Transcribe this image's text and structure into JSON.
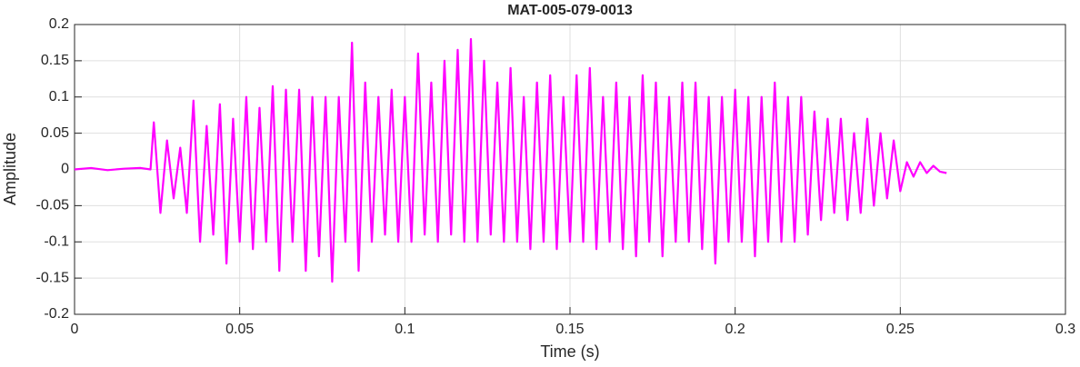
{
  "chart_data": {
    "type": "line",
    "title": "MAT-005-079-0013",
    "x_label": "Time (s)",
    "y_label": "Amplitude",
    "xlim": [
      0,
      0.3
    ],
    "xticks": [
      0,
      0.05,
      0.1,
      0.15,
      0.2,
      0.25,
      0.3
    ],
    "ylim": [
      -0.2,
      0.2
    ],
    "yticks": [
      0.2,
      0.15,
      0.1,
      0.05,
      0,
      -0.05,
      -0.1,
      -0.15,
      -0.2
    ],
    "grid": true,
    "x": [
      0,
      0.005,
      0.01,
      0.015,
      0.02,
      0.023,
      0.024,
      0.026,
      0.028,
      0.03,
      0.032,
      0.034,
      0.036,
      0.038,
      0.04,
      0.042,
      0.044,
      0.046,
      0.048,
      0.05,
      0.052,
      0.054,
      0.056,
      0.058,
      0.06,
      0.062,
      0.064,
      0.066,
      0.068,
      0.07,
      0.072,
      0.074,
      0.076,
      0.078,
      0.08,
      0.082,
      0.084,
      0.086,
      0.088,
      0.09,
      0.092,
      0.094,
      0.096,
      0.098,
      0.1,
      0.102,
      0.104,
      0.106,
      0.108,
      0.11,
      0.112,
      0.114,
      0.116,
      0.118,
      0.12,
      0.122,
      0.124,
      0.126,
      0.128,
      0.13,
      0.132,
      0.134,
      0.136,
      0.138,
      0.14,
      0.142,
      0.144,
      0.146,
      0.148,
      0.15,
      0.152,
      0.154,
      0.156,
      0.158,
      0.16,
      0.162,
      0.164,
      0.166,
      0.168,
      0.17,
      0.172,
      0.174,
      0.176,
      0.178,
      0.18,
      0.182,
      0.184,
      0.186,
      0.188,
      0.19,
      0.192,
      0.194,
      0.196,
      0.198,
      0.2,
      0.202,
      0.204,
      0.206,
      0.208,
      0.21,
      0.212,
      0.214,
      0.216,
      0.218,
      0.22,
      0.222,
      0.224,
      0.226,
      0.228,
      0.23,
      0.232,
      0.234,
      0.236,
      0.238,
      0.24,
      0.242,
      0.244,
      0.246,
      0.248,
      0.25,
      0.252,
      0.254,
      0.256,
      0.258,
      0.26,
      0.262,
      0.264
    ],
    "series": [
      {
        "name": "Amplitude",
        "color": "#ff00ff",
        "values": [
          0,
          0.002,
          -0.001,
          0.001,
          0.002,
          0,
          0.065,
          -0.06,
          0.04,
          -0.04,
          0.03,
          -0.06,
          0.095,
          -0.1,
          0.06,
          -0.09,
          0.09,
          -0.13,
          0.07,
          -0.1,
          0.1,
          -0.11,
          0.085,
          -0.1,
          0.115,
          -0.14,
          0.11,
          -0.1,
          0.11,
          -0.14,
          0.1,
          -0.12,
          0.1,
          -0.155,
          0.1,
          -0.1,
          0.175,
          -0.14,
          0.12,
          -0.1,
          0.1,
          -0.09,
          0.11,
          -0.1,
          0.1,
          -0.1,
          0.16,
          -0.09,
          0.12,
          -0.1,
          0.15,
          -0.09,
          0.165,
          -0.1,
          0.18,
          -0.1,
          0.15,
          -0.09,
          0.12,
          -0.1,
          0.14,
          -0.1,
          0.1,
          -0.11,
          0.12,
          -0.1,
          0.13,
          -0.11,
          0.1,
          -0.1,
          0.13,
          -0.1,
          0.14,
          -0.11,
          0.1,
          -0.1,
          0.12,
          -0.11,
          0.1,
          -0.12,
          0.13,
          -0.1,
          0.12,
          -0.12,
          0.1,
          -0.1,
          0.12,
          -0.1,
          0.12,
          -0.11,
          0.1,
          -0.13,
          0.1,
          -0.1,
          0.11,
          -0.1,
          0.1,
          -0.12,
          0.1,
          -0.1,
          0.12,
          -0.1,
          0.1,
          -0.1,
          0.1,
          -0.09,
          0.08,
          -0.07,
          0.07,
          -0.06,
          0.07,
          -0.07,
          0.05,
          -0.06,
          0.07,
          -0.05,
          0.05,
          -0.04,
          0.04,
          -0.03,
          0.01,
          -0.01,
          0.01,
          -0.005,
          0.005,
          -0.003,
          -0.005
        ]
      }
    ]
  }
}
